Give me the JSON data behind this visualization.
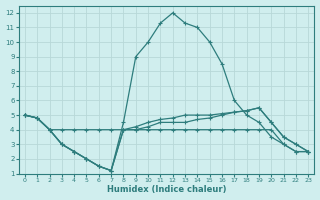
{
  "xlabel": "Humidex (Indice chaleur)",
  "xlim": [
    -0.5,
    23.5
  ],
  "ylim": [
    1,
    12.5
  ],
  "xticks": [
    0,
    1,
    2,
    3,
    4,
    5,
    6,
    7,
    8,
    9,
    10,
    11,
    12,
    13,
    14,
    15,
    16,
    17,
    18,
    19,
    20,
    21,
    22,
    23
  ],
  "yticks": [
    1,
    2,
    3,
    4,
    5,
    6,
    7,
    8,
    9,
    10,
    11,
    12
  ],
  "bg_color": "#d0eeee",
  "grid_color": "#b8d8d8",
  "line_color": "#2e7d7d",
  "series": [
    {
      "x": [
        0,
        1,
        2,
        3,
        4,
        5,
        6,
        7,
        8,
        9,
        10,
        11,
        12,
        13,
        14,
        15,
        16,
        17,
        18,
        19,
        20,
        21,
        22,
        23
      ],
      "y": [
        5,
        4.8,
        4,
        3,
        2.5,
        2,
        1.5,
        1.2,
        4.5,
        9,
        10,
        11.3,
        12,
        11.3,
        11,
        10,
        8.5,
        6,
        5,
        4.5,
        3.5,
        3,
        2.5,
        2.5
      ]
    },
    {
      "x": [
        0,
        1,
        2,
        3,
        4,
        5,
        6,
        7,
        8,
        9,
        10,
        11,
        12,
        13,
        14,
        15,
        16,
        17,
        18,
        19,
        20,
        21,
        22,
        23
      ],
      "y": [
        5,
        4.8,
        4,
        4,
        4,
        4,
        4,
        4,
        4,
        4,
        4.2,
        4.5,
        4.5,
        4.5,
        4.7,
        4.8,
        5,
        5.2,
        5.3,
        5.5,
        4.5,
        3.5,
        3,
        2.5
      ]
    },
    {
      "x": [
        0,
        1,
        2,
        3,
        4,
        5,
        6,
        7,
        8,
        9,
        10,
        11,
        12,
        13,
        14,
        15,
        16,
        17,
        18,
        19,
        20,
        21,
        22,
        23
      ],
      "y": [
        5,
        4.8,
        4,
        3,
        2.5,
        2,
        1.5,
        1.2,
        4,
        4,
        4,
        4,
        4,
        4,
        4,
        4,
        4,
        4,
        4,
        4,
        4,
        3,
        2.5,
        2.5
      ]
    },
    {
      "x": [
        0,
        1,
        2,
        3,
        4,
        5,
        6,
        7,
        8,
        9,
        10,
        11,
        12,
        13,
        14,
        15,
        16,
        17,
        18,
        19,
        20,
        21,
        22,
        23
      ],
      "y": [
        5,
        4.8,
        4,
        3,
        2.5,
        2,
        1.5,
        1.2,
        4,
        4.2,
        4.5,
        4.7,
        4.8,
        5,
        5,
        5,
        5.1,
        5.2,
        5.3,
        5.5,
        4.5,
        3.5,
        3.0,
        2.5
      ]
    }
  ]
}
